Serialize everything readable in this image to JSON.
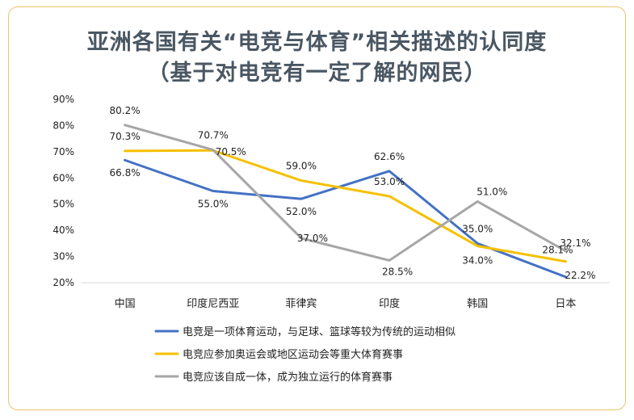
{
  "title_line1": "亚洲各国有关“电竞与体育”相关描述的认同度",
  "title_line2": "（基于对电竞有一定了解的网民）",
  "chart_data": {
    "type": "line",
    "categories": [
      "中国",
      "印度尼西亚",
      "菲律宾",
      "印度",
      "韩国",
      "日本"
    ],
    "ylim": [
      20,
      90
    ],
    "yticks": [
      20,
      30,
      40,
      50,
      60,
      70,
      80,
      90
    ],
    "ytick_labels": [
      "20%",
      "30%",
      "40%",
      "50%",
      "60%",
      "70%",
      "80%",
      "90%"
    ],
    "grid": false,
    "legend_position": "bottom",
    "series": [
      {
        "name": "电竞是一项体育运动，与足球、篮球等较为传统的运动相似",
        "color": "#4472c4",
        "values": [
          66.8,
          55.0,
          52.0,
          62.6,
          35.0,
          22.2
        ],
        "labels": [
          "66.8%",
          "55.0%",
          "52.0%",
          "62.6%",
          "35.0%",
          "22.2%"
        ]
      },
      {
        "name": "电竞应参加奥运会或地区运动会等重大体育赛事",
        "color": "#f5c000",
        "values": [
          70.3,
          70.5,
          59.0,
          53.0,
          34.0,
          28.1
        ],
        "labels": [
          "70.3%",
          "70.5%",
          "59.0%",
          "53.0%",
          "34.0%",
          "28.1%"
        ]
      },
      {
        "name": "电竞应该自成一体，成为独立运行的体育赛事",
        "color": "#a6a6a6",
        "values": [
          80.2,
          70.7,
          37.0,
          28.5,
          51.0,
          32.1
        ],
        "labels": [
          "80.2%",
          "70.7%",
          "37.0%",
          "28.5%",
          "51.0%",
          "32.1%"
        ]
      }
    ]
  }
}
